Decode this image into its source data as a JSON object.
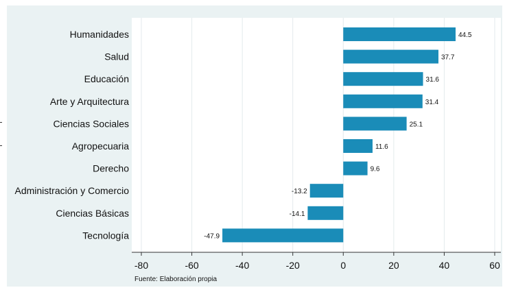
{
  "chart_data": {
    "type": "bar",
    "orientation": "horizontal",
    "categories": [
      "Humanidades",
      "Salud",
      "Educación",
      "Arte y Arquitectura",
      "Ciencias Sociales",
      "Agropecuaria",
      "Derecho",
      "Administración y Comercio",
      "Ciencias Básicas",
      "Tecnología"
    ],
    "values": [
      44.5,
      37.7,
      31.6,
      31.4,
      25.1,
      11.6,
      9.6,
      -13.2,
      -14.1,
      -47.9
    ],
    "data_labels": [
      "44.5",
      "37.7",
      "31.6",
      "31.4",
      "25.1",
      "11.6",
      "9.6",
      "-13.2",
      "-14.1",
      "-47.9"
    ],
    "xlim": [
      -80,
      60
    ],
    "xticks": [
      -80,
      -60,
      -40,
      -20,
      0,
      20,
      40,
      60
    ],
    "xtick_labels": [
      "-80",
      "-60",
      "-40",
      "-20",
      "0",
      "20",
      "40",
      "60"
    ],
    "grid": "vertical",
    "bar_color": "#1a8cb8",
    "note": "Fuente: Elaboración propia"
  }
}
